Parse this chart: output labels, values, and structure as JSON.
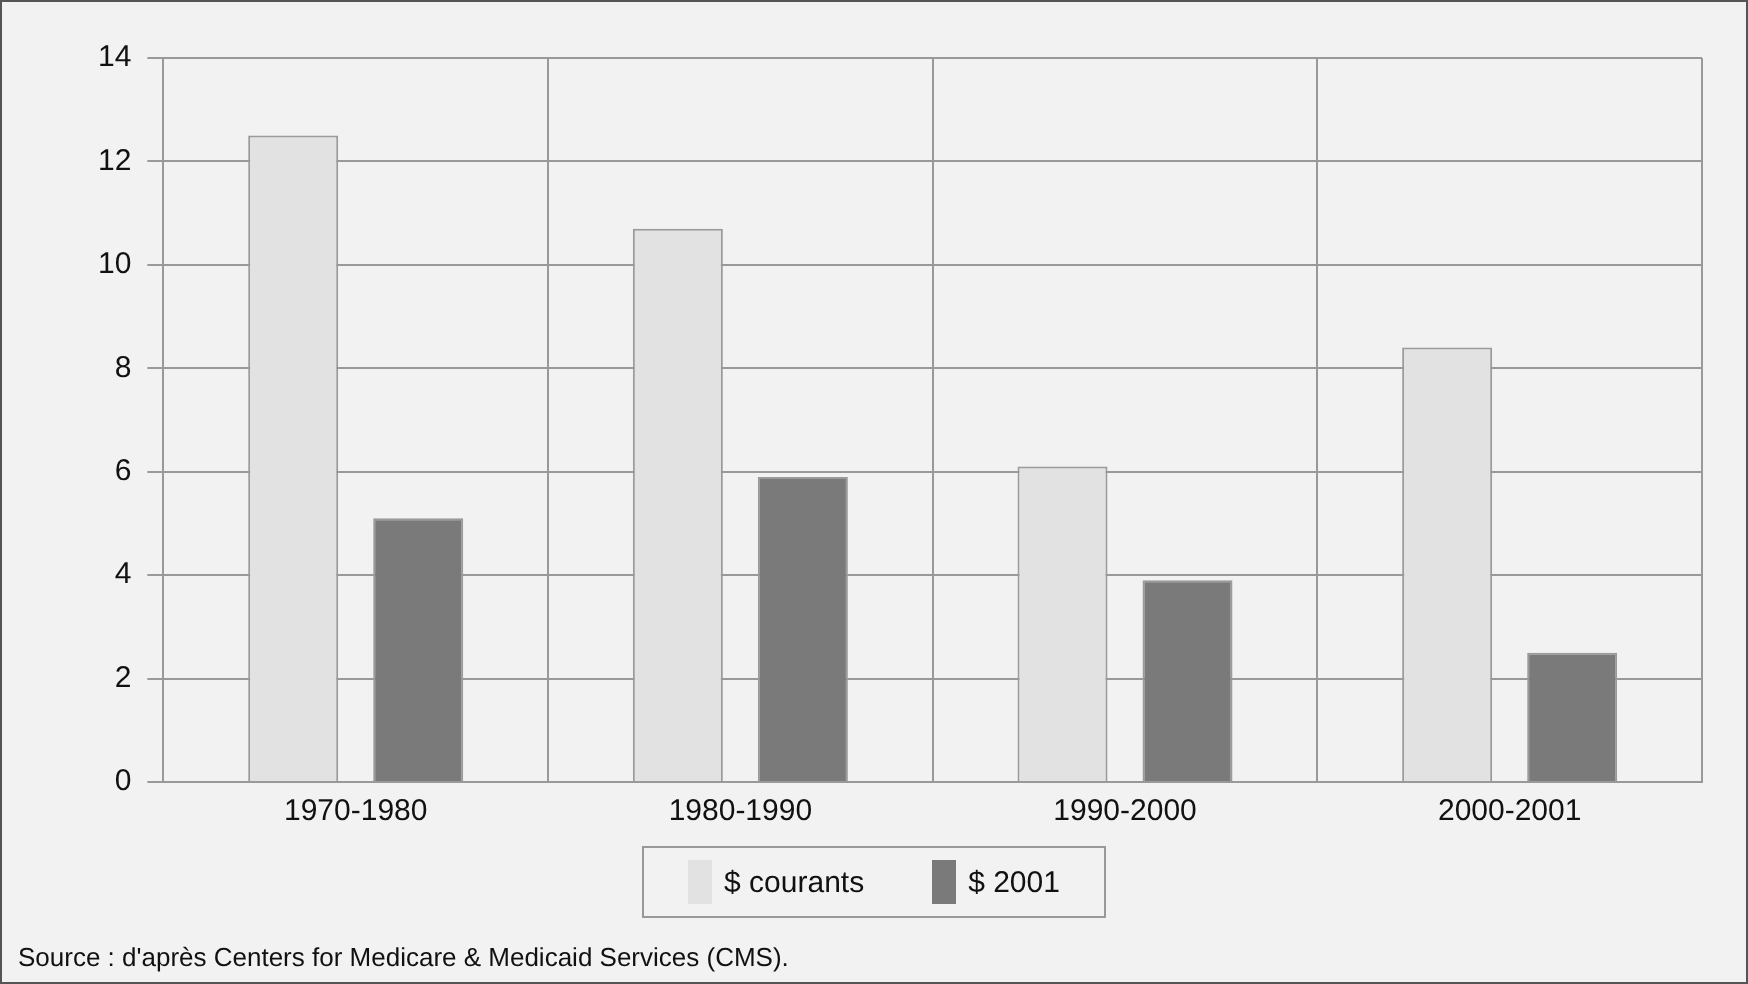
{
  "chart_data": {
    "type": "bar",
    "categories": [
      "1970-1980",
      "1980-1990",
      "1990-2000",
      "2000-2001"
    ],
    "series": [
      {
        "name": "$ courants",
        "color": "#e2e2e2",
        "values": [
          12.5,
          10.7,
          6.1,
          8.4
        ]
      },
      {
        "name": "$ 2001",
        "color": "#7a7a7a",
        "values": [
          5.1,
          5.9,
          3.9,
          2.5
        ]
      }
    ],
    "ylim": [
      0,
      14
    ],
    "yticks": [
      0,
      2,
      4,
      6,
      8,
      10,
      12,
      14
    ],
    "grid": true,
    "legend": "bottom",
    "annotations": [
      "Source : d'après Centers for Medicare & Medicaid Services (CMS)."
    ]
  }
}
